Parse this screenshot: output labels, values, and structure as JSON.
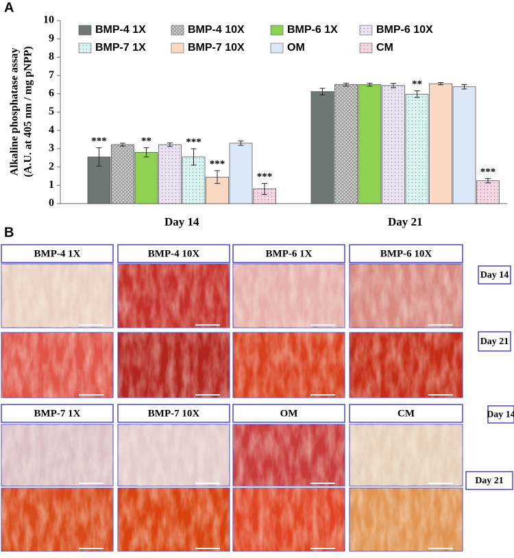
{
  "panel_a": "A",
  "chart_data": {
    "type": "bar",
    "y_label": [
      "Alkaline phosphatase assay",
      "(A.U. at 405 nm / mg pNPP)"
    ],
    "categories": [
      "Day 14",
      "Day 21"
    ],
    "ylim": [
      0,
      10
    ],
    "yticks": [
      0,
      1,
      2,
      3,
      4,
      5,
      6,
      7,
      8,
      9,
      10
    ],
    "grid": false,
    "legend": "top",
    "series": [
      {
        "name": "BMP-4 1X",
        "color": "#6f7773",
        "hatch": "none",
        "values": [
          2.55,
          6.12
        ],
        "errors": [
          0.5,
          0.18
        ],
        "annotations": [
          "***",
          null
        ]
      },
      {
        "name": "BMP-4 10X",
        "color": "#d4d4d4",
        "hatch": "cross",
        "values": [
          3.22,
          6.5
        ],
        "errors": [
          0.08,
          0.08
        ],
        "annotations": [
          null,
          null
        ]
      },
      {
        "name": "BMP-6 1X",
        "color": "#8fd150",
        "hatch": "none",
        "values": [
          2.8,
          6.5
        ],
        "errors": [
          0.25,
          0.08
        ],
        "annotations": [
          "**",
          null
        ]
      },
      {
        "name": "BMP-6 10X",
        "color": "#ebe3f3",
        "hatch": "dots",
        "values": [
          3.22,
          6.45
        ],
        "errors": [
          0.1,
          0.12
        ],
        "annotations": [
          null,
          null
        ]
      },
      {
        "name": "BMP-7 1X",
        "color": "#d9f5f1",
        "hatch": "dots",
        "values": [
          2.55,
          5.98
        ],
        "errors": [
          0.45,
          0.18
        ],
        "annotations": [
          "***",
          "**"
        ]
      },
      {
        "name": "BMP-7 10X",
        "color": "#fbd9c3",
        "hatch": "none",
        "values": [
          1.45,
          6.55
        ],
        "errors": [
          0.35,
          0.06
        ],
        "annotations": [
          "***",
          null
        ]
      },
      {
        "name": "OM",
        "color": "#dbe8f7",
        "hatch": "none",
        "values": [
          3.3,
          6.38
        ],
        "errors": [
          0.12,
          0.12
        ],
        "annotations": [
          null,
          null
        ]
      },
      {
        "name": "CM",
        "color": "#f6d6e2",
        "hatch": "dots",
        "values": [
          0.8,
          1.25
        ],
        "errors": [
          0.3,
          0.12
        ],
        "annotations": [
          "***",
          "***"
        ]
      }
    ]
  },
  "panel_b": {
    "label": "B",
    "groups": [
      {
        "labels": [
          "BMP-4 1X",
          "BMP-4 10X",
          "BMP-6 1X",
          "BMP-6 10X"
        ],
        "day_labels": [
          "Day 14",
          "Day 21"
        ]
      },
      {
        "labels": [
          "BMP-7 1X",
          "BMP-7 10X",
          "OM",
          "CM"
        ],
        "day_labels": [
          "Day 14",
          "Day 21"
        ]
      }
    ]
  }
}
